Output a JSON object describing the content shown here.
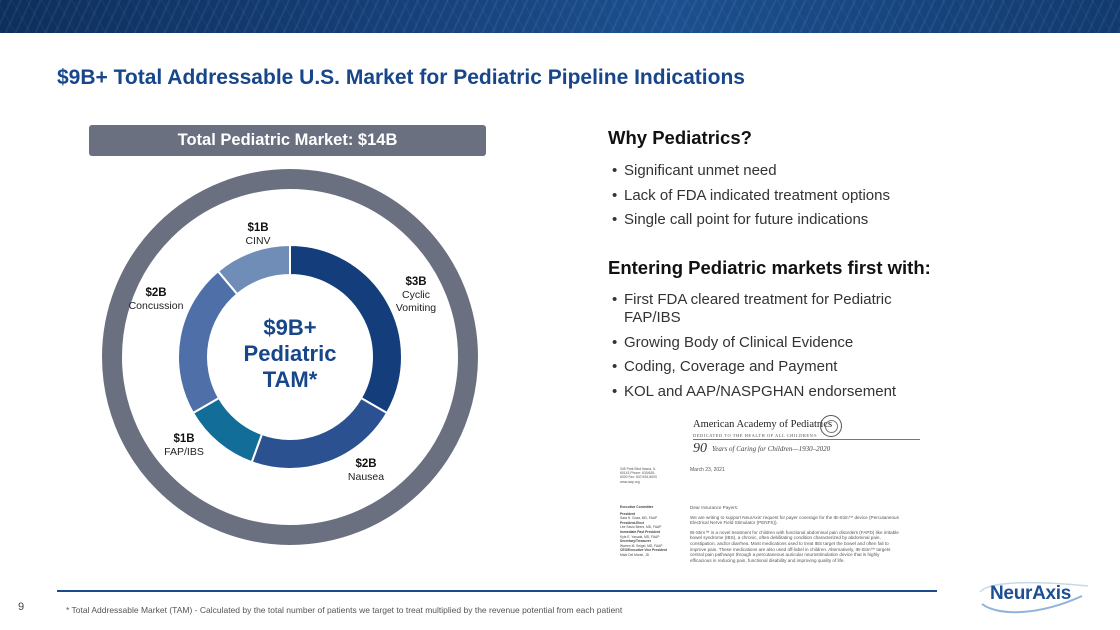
{
  "slide": {
    "title": "$9B+ Total Addressable U.S. Market for Pediatric Pipeline Indications",
    "page_number": "9",
    "footnote": "* Total Addressable Market (TAM) - Calculated by the total number of patients we target to treat multiplied by the revenue potential from each patient"
  },
  "market_pill": "Total Pediatric Market: $14B",
  "chart_data": {
    "type": "pie",
    "center_lines": [
      "$9B+",
      "Pediatric",
      "TAM*"
    ],
    "segments": [
      {
        "value_label": "$3B",
        "name_lines": [
          "Cyclic",
          "Vomiting"
        ],
        "value": 3,
        "color": "#143d7c"
      },
      {
        "value_label": "$2B",
        "name_lines": [
          "Nausea"
        ],
        "value": 2,
        "color": "#2c5191"
      },
      {
        "value_label": "$1B",
        "name_lines": [
          "FAP/IBS"
        ],
        "value": 1,
        "color": "#126d99"
      },
      {
        "value_label": "$2B",
        "name_lines": [
          "Concussion"
        ],
        "value": 2,
        "color": "#4f6fa9"
      },
      {
        "value_label": "$1B",
        "name_lines": [
          "CINV"
        ],
        "value": 1,
        "color": "#6f8db7"
      }
    ],
    "outer_ring_color": "#6b7080"
  },
  "why": {
    "heading": "Why Pediatrics?",
    "bullets": [
      "Significant unmet need",
      "Lack of FDA indicated treatment options",
      "Single call point for future indications"
    ]
  },
  "entering": {
    "heading": "Entering Pediatric markets first with:",
    "bullets": [
      "First FDA cleared treatment for Pediatric FAP/IBS",
      "Growing Body of Clinical Evidence",
      "Coding, Coverage and Payment",
      "KOL and AAP/NASPGHAN endorsement"
    ]
  },
  "letter": {
    "org": "American Academy of Pediatrics",
    "tagline": "DEDICATED TO THE HEALTH OF ALL CHILDREN®",
    "ninety": "90",
    "years": "Years of Caring for Children—1930–2020",
    "address": "345 Park Blvd Itasca, IL 60143 Phone: 630/626-6000 Fax: 847/434-8000 www.aap.org",
    "date": "March 23, 2021",
    "committee": [
      {
        "role": "Executive Committee",
        "name": ""
      },
      {
        "role": "President",
        "name": "Sara H. Goza, MD, FAAP"
      },
      {
        "role": "President-Elect",
        "name": "Lee Savio Beers, MD, FAAP"
      },
      {
        "role": "Immediate Past President",
        "name": "Kyle E. Yasuda, MD, FAAP"
      },
      {
        "role": "Secretary/Treasurer",
        "name": "Warren M. Seigel, MD, FAAP"
      },
      {
        "role": "CEO/Executive Vice President",
        "name": "Mark Del Monte, JD"
      }
    ],
    "salutation": "Dear Insurance Payers:",
    "para1": "We are writing to support NeurAxis' request for payer coverage for the IB-Stim™ device (Percutaneous Electrical Nerve Field Stimulator (PENFS)).",
    "para2": "IB-Stim™ is a novel treatment for children with functional abdominal pain disorders (FAPD) like irritable bowel syndrome (IBS), a chronic, often debilitating condition characterized by abdominal pain, constipation, and/or diarrhea. Most medications used to treat IBS target the bowel and often fail to improve pain. These medications are also used off-label in children. Alternatively, IB-Stim™ targets central pain pathways through a percutaneous auricular neurostimulation device that is highly efficacious in reducing pain, functional disability and improving quality of life."
  },
  "logo": {
    "text": "NeurAxis",
    "color": "#1c4f94"
  }
}
